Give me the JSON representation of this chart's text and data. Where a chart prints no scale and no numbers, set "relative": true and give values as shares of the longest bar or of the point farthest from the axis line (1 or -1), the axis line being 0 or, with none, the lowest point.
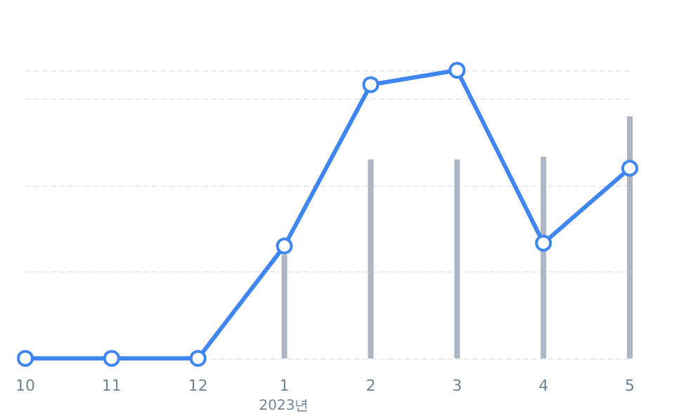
{
  "chart_data": {
    "type": "line",
    "relative": true,
    "categories": [
      "10",
      "11",
      "12",
      "1",
      "2",
      "3",
      "4",
      "5"
    ],
    "series": [
      {
        "type": "bar",
        "color": "#adb6c2",
        "values": [
          null,
          null,
          null,
          0.36,
          0.69,
          0.69,
          0.7,
          0.84
        ]
      },
      {
        "color": "#3f86f0",
        "values": [
          0,
          0,
          0,
          0.39,
          0.95,
          1,
          0.4,
          0.66
        ]
      }
    ],
    "annotations": [
      "2023년"
    ],
    "grid": "y",
    "marker": "circle",
    "line_style": "solid"
  }
}
